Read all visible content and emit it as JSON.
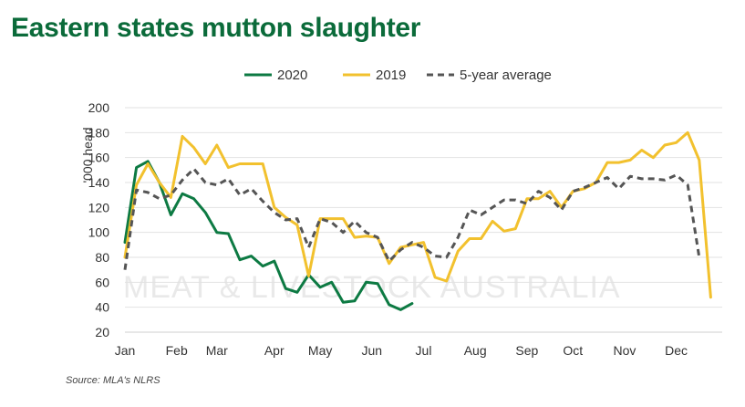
{
  "title": "Eastern states mutton slaughter",
  "source": "Source: MLA's NLRS",
  "watermark": "MEAT & LIVESTOCK AUSTRALIA",
  "chart_data": {
    "type": "line",
    "title": "Eastern states mutton slaughter",
    "ylabel": "'000 head",
    "xlabel": "",
    "ylim": [
      20,
      200
    ],
    "yticks": [
      20,
      40,
      60,
      80,
      100,
      120,
      140,
      160,
      180,
      200
    ],
    "xlim": [
      1,
      53
    ],
    "xtick_labels": [
      "Jan",
      "Feb",
      "Mar",
      "Apr",
      "May",
      "Jun",
      "Jul",
      "Aug",
      "Sep",
      "Oct",
      "Nov",
      "Dec"
    ],
    "xtick_weeks": [
      1,
      5.5,
      9,
      14,
      18,
      22.5,
      27,
      31.5,
      36,
      40,
      44.5,
      49
    ],
    "legend_position": "top",
    "grid": "horizontal",
    "series": [
      {
        "name": "2020",
        "color": "#0d7a43",
        "dash": false,
        "x": [
          1,
          2,
          3,
          4,
          5,
          6,
          7,
          8,
          9,
          10,
          11,
          12,
          13,
          14,
          15,
          16,
          17,
          18,
          19,
          20,
          21,
          22,
          23,
          24,
          25,
          26,
          27
        ],
        "values": [
          92,
          152,
          157,
          140,
          114,
          131,
          127,
          116,
          100,
          99,
          78,
          81,
          73,
          77,
          55,
          52,
          66,
          56,
          60,
          44,
          45,
          60,
          59,
          42,
          38,
          43,
          null
        ]
      },
      {
        "name": "2019",
        "color": "#f2c12e",
        "dash": false,
        "x": [
          1,
          2,
          3,
          4,
          5,
          6,
          7,
          8,
          9,
          10,
          11,
          12,
          13,
          14,
          15,
          16,
          17,
          18,
          19,
          20,
          21,
          22,
          23,
          24,
          25,
          26,
          27,
          28,
          29,
          30,
          31,
          32,
          33,
          34,
          35,
          36,
          37,
          38,
          39,
          40,
          41,
          42,
          43,
          44,
          45,
          46,
          47,
          48,
          49,
          50,
          51,
          52,
          53
        ],
        "values": [
          80,
          138,
          155,
          140,
          128,
          177,
          168,
          155,
          170,
          152,
          155,
          155,
          155,
          120,
          112,
          106,
          65,
          111,
          111,
          111,
          96,
          97,
          96,
          75,
          88,
          90,
          92,
          64,
          61,
          85,
          95,
          95,
          109,
          101,
          103,
          127,
          127,
          133,
          120,
          133,
          135,
          140,
          156,
          156,
          158,
          166,
          160,
          170,
          172,
          180,
          158,
          48,
          null
        ]
      },
      {
        "name": "5-year average",
        "color": "#555555",
        "dash": true,
        "x": [
          1,
          2,
          3,
          4,
          5,
          6,
          7,
          8,
          9,
          10,
          11,
          12,
          13,
          14,
          15,
          16,
          17,
          18,
          19,
          20,
          21,
          22,
          23,
          24,
          25,
          26,
          27,
          28,
          29,
          30,
          31,
          32,
          33,
          34,
          35,
          36,
          37,
          38,
          39,
          40,
          41,
          42,
          43,
          44,
          45,
          46,
          47,
          48,
          49,
          50,
          51,
          52
        ],
        "values": [
          70,
          134,
          132,
          127,
          130,
          142,
          151,
          140,
          138,
          143,
          130,
          135,
          125,
          116,
          110,
          111,
          88,
          111,
          108,
          100,
          109,
          100,
          96,
          77,
          86,
          92,
          88,
          81,
          80,
          96,
          118,
          114,
          120,
          126,
          126,
          123,
          133,
          128,
          118,
          133,
          136,
          140,
          144,
          135,
          145,
          143,
          143,
          142,
          146,
          138,
          80,
          null
        ]
      }
    ]
  }
}
